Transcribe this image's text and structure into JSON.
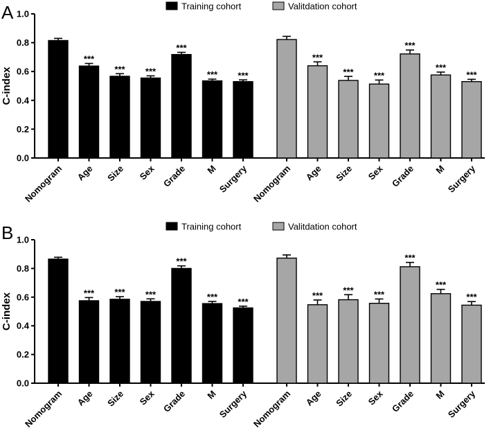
{
  "chart_data": [
    {
      "type": "bar",
      "panel_label": "A",
      "ylabel": "C-index",
      "xlabel": "",
      "ylim": [
        0,
        1.0
      ],
      "yticks": [
        "0.0",
        "0.2",
        "0.4",
        "0.6",
        "0.8",
        "1.0"
      ],
      "legend": [
        {
          "name": "Training cohort",
          "color": "#000000"
        },
        {
          "name": "Valitdation cohort",
          "color": "#a6a6a6"
        }
      ],
      "groups": [
        {
          "name": "Training cohort",
          "color": "#000000",
          "categories": [
            "Nomogram",
            "Age",
            "Size",
            "Sex",
            "Grade",
            "M",
            "Surgery"
          ],
          "values": [
            0.815,
            0.638,
            0.567,
            0.555,
            0.718,
            0.535,
            0.53
          ],
          "errors": [
            0.015,
            0.018,
            0.018,
            0.015,
            0.015,
            0.012,
            0.012
          ],
          "significance": [
            "",
            "***",
            "***",
            "***",
            "***",
            "***",
            "***"
          ]
        },
        {
          "name": "Valitdation cohort",
          "color": "#a6a6a6",
          "categories": [
            "Nomogram",
            "Age",
            "Size",
            "Sex",
            "Grade",
            "M",
            "Surgery"
          ],
          "values": [
            0.822,
            0.64,
            0.538,
            0.513,
            0.722,
            0.576,
            0.53
          ],
          "errors": [
            0.022,
            0.027,
            0.028,
            0.028,
            0.027,
            0.02,
            0.016
          ],
          "significance": [
            "",
            "***",
            "***",
            "***",
            "***",
            "***",
            "***"
          ]
        }
      ]
    },
    {
      "type": "bar",
      "panel_label": "B",
      "ylabel": "C-index",
      "xlabel": "",
      "ylim": [
        0,
        1.0
      ],
      "yticks": [
        "0.0",
        "0.2",
        "0.4",
        "0.6",
        "0.8",
        "1.0"
      ],
      "legend": [
        {
          "name": "Training cohort",
          "color": "#000000"
        },
        {
          "name": "Valitdation cohort",
          "color": "#a6a6a6"
        }
      ],
      "groups": [
        {
          "name": "Training cohort",
          "color": "#000000",
          "categories": [
            "Nomogram",
            "Age",
            "Size",
            "Sex",
            "Grade",
            "M",
            "Surgery"
          ],
          "values": [
            0.865,
            0.575,
            0.585,
            0.57,
            0.8,
            0.555,
            0.525
          ],
          "errors": [
            0.013,
            0.022,
            0.018,
            0.018,
            0.018,
            0.015,
            0.012
          ],
          "significance": [
            "",
            "***",
            "***",
            "***",
            "***",
            "***",
            "***"
          ]
        },
        {
          "name": "Valitdation cohort",
          "color": "#a6a6a6",
          "categories": [
            "Nomogram",
            "Age",
            "Size",
            "Sex",
            "Grade",
            "M",
            "Surgery"
          ],
          "values": [
            0.872,
            0.547,
            0.582,
            0.557,
            0.812,
            0.624,
            0.544
          ],
          "errors": [
            0.022,
            0.033,
            0.035,
            0.03,
            0.03,
            0.03,
            0.025
          ],
          "significance": [
            "",
            "***",
            "***",
            "***",
            "***",
            "***",
            "***"
          ]
        }
      ]
    }
  ]
}
